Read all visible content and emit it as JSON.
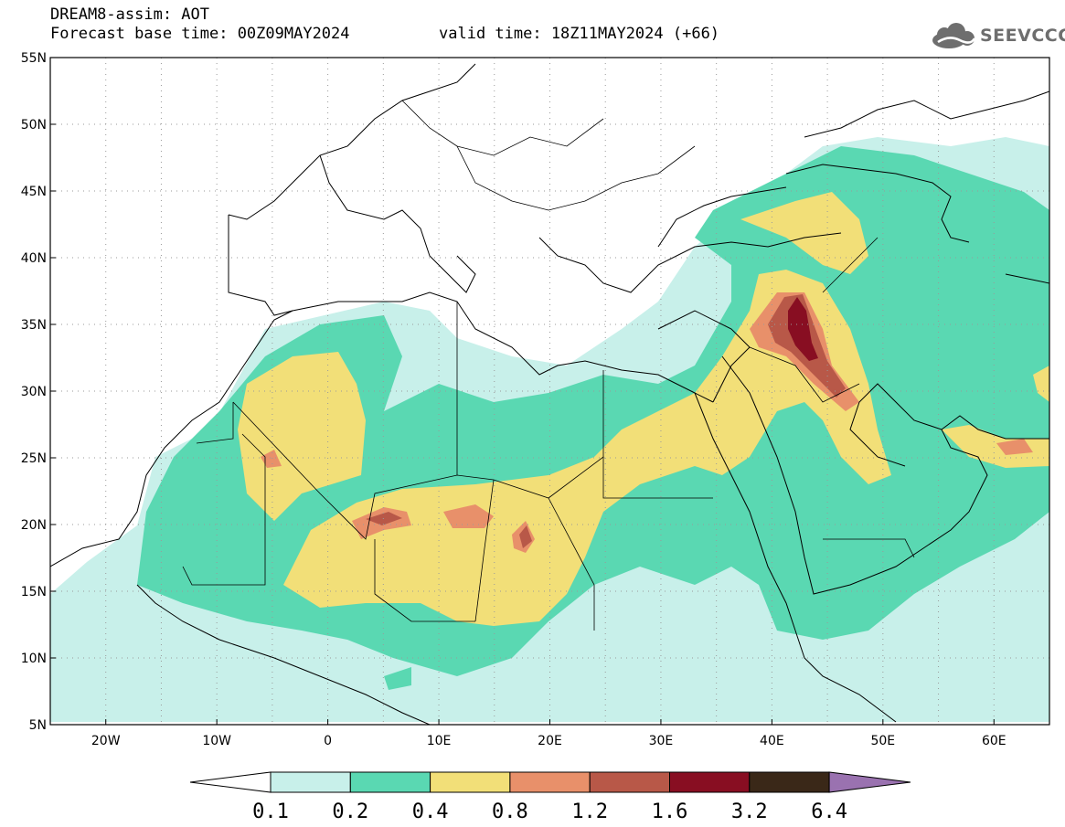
{
  "header": {
    "line1": "DREAM8-assim: AOT",
    "line2": "Forecast base time: 00Z09MAY2024",
    "valid": "valid time: 18Z11MAY2024 (+66)",
    "logo_text": "SEEVCCC"
  },
  "map": {
    "lat_labels": [
      "55N",
      "50N",
      "45N",
      "40N",
      "35N",
      "30N",
      "25N",
      "20N",
      "15N",
      "10N",
      "5N"
    ],
    "lon_labels": [
      "20W",
      "10W",
      "0",
      "10E",
      "20E",
      "30E",
      "40E",
      "50E",
      "60E"
    ],
    "lon_range": [
      -25,
      65
    ],
    "lat_range": [
      5,
      55
    ],
    "grid": "dotted"
  },
  "colorbar": {
    "labels": [
      "0.1",
      "0.2",
      "0.4",
      "0.8",
      "1.2",
      "1.6",
      "3.2",
      "6.4"
    ],
    "colors": [
      "#c8f0ea",
      "#5ad8b2",
      "#f2df78",
      "#e8906a",
      "#b85848",
      "#880e22",
      "#3a2818",
      "#9a72b0"
    ]
  }
}
